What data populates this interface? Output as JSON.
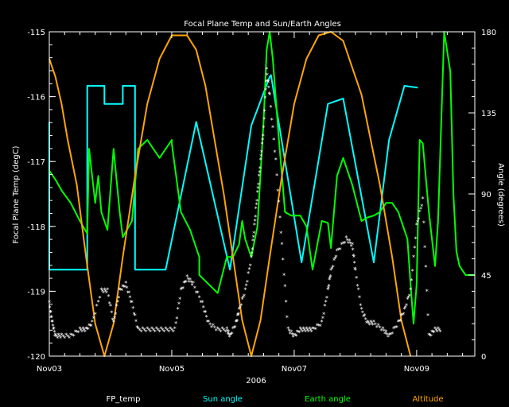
{
  "chart_data": {
    "type": "line",
    "title": "Focal Plane Temp and Sun/Earth Angles",
    "xlabel": "2006",
    "ylabel": "Focal Plane Temp (degC)",
    "y2label": "Angle (degrees)",
    "xlim_days": [
      3,
      9.95
    ],
    "x_ticks": [
      {
        "day": 3,
        "label": "Nov03"
      },
      {
        "day": 5,
        "label": "Nov05"
      },
      {
        "day": 7,
        "label": "Nov07"
      },
      {
        "day": 9,
        "label": "Nov09"
      }
    ],
    "ylim": [
      -120,
      -115
    ],
    "y_ticks": [
      "-115",
      "-116",
      "-117",
      "-118",
      "-119",
      "-120"
    ],
    "y2lim": [
      0,
      180
    ],
    "y2_ticks": [
      "180",
      "135",
      "90",
      "45",
      "0"
    ],
    "legend": [
      {
        "name": "FP_temp",
        "color": "#ffffff"
      },
      {
        "name": "Sun angle",
        "color": "#00ffff"
      },
      {
        "name": "Earth angle",
        "color": "#00ff00"
      },
      {
        "name": "Altitude",
        "color": "#ffa500"
      }
    ],
    "series": [
      {
        "name": "Sun angle",
        "axis": "right",
        "color": "#00ffff",
        "x": [
          3.0,
          3.0,
          3.02,
          3.62,
          3.62,
          3.9,
          3.9,
          4.2,
          4.2,
          4.4,
          4.4,
          4.4,
          4.9,
          4.9,
          5.4,
          5.4,
          5.95,
          5.95,
          6.3,
          6.3,
          6.6,
          6.6,
          6.62,
          6.62,
          7.12,
          7.12,
          7.55,
          7.55,
          7.8,
          7.8,
          8.3,
          8.3,
          8.55,
          8.55,
          8.8,
          8.8,
          9.02,
          9.02
        ],
        "y": [
          130,
          48,
          48,
          48,
          150,
          150,
          140,
          140,
          150,
          150,
          48,
          48,
          48,
          48,
          130,
          130,
          48,
          48,
          128,
          128,
          155,
          155,
          156,
          156,
          52,
          52,
          140,
          140,
          143,
          143,
          52,
          52,
          120,
          120,
          150,
          150,
          149,
          149
        ]
      },
      {
        "name": "Earth angle",
        "axis": "right",
        "color": "#00ff00",
        "x": [
          3.0,
          3.1,
          3.2,
          3.35,
          3.5,
          3.62,
          3.65,
          3.75,
          3.8,
          3.85,
          3.95,
          4.05,
          4.15,
          4.2,
          4.35,
          4.45,
          4.6,
          4.8,
          5.0,
          5.0,
          5.15,
          5.3,
          5.45,
          5.45,
          5.6,
          5.75,
          5.9,
          6.0,
          6.1,
          6.15,
          6.2,
          6.3,
          6.4,
          6.5,
          6.55,
          6.6,
          6.65,
          6.75,
          6.85,
          6.95,
          7.1,
          7.2,
          7.3,
          7.45,
          7.55,
          7.6,
          7.7,
          7.8,
          7.95,
          8.1,
          8.2,
          8.3,
          8.4,
          8.5,
          8.6,
          8.7,
          8.85,
          8.9,
          8.95,
          9.0,
          9.05,
          9.1,
          9.2,
          9.3,
          9.35,
          9.45,
          9.55,
          9.6,
          9.65,
          9.7,
          9.8,
          9.95
        ],
        "y": [
          103,
          98,
          92,
          85,
          75,
          68,
          115,
          85,
          100,
          80,
          70,
          115,
          80,
          66,
          75,
          115,
          120,
          110,
          120,
          118,
          80,
          70,
          55,
          45,
          40,
          35,
          55,
          55,
          62,
          75,
          65,
          55,
          72,
          130,
          170,
          180,
          165,
          120,
          80,
          78,
          78,
          72,
          48,
          75,
          74,
          60,
          100,
          110,
          95,
          75,
          77,
          78,
          80,
          85,
          85,
          80,
          65,
          40,
          18,
          40,
          120,
          118,
          80,
          50,
          75,
          180,
          158,
          90,
          58,
          50,
          45,
          45
        ]
      },
      {
        "name": "Altitude",
        "axis": "right",
        "color": "#ffa500",
        "x": [
          3.0,
          3.1,
          3.2,
          3.3,
          3.45,
          3.6,
          3.75,
          3.9,
          4.05,
          4.2,
          4.4,
          4.6,
          4.8,
          5.0,
          5.25,
          5.4,
          5.55,
          5.7,
          5.85,
          6.0,
          6.15,
          6.3,
          6.45,
          6.6,
          6.8,
          7.0,
          7.2,
          7.4,
          7.6,
          7.8,
          7.95,
          8.1,
          8.25,
          8.4,
          8.6,
          8.75,
          8.9
        ],
        "y": [
          165,
          155,
          140,
          120,
          95,
          55,
          18,
          0,
          18,
          55,
          100,
          140,
          165,
          178,
          178,
          170,
          150,
          120,
          90,
          55,
          20,
          0,
          20,
          55,
          100,
          140,
          165,
          178,
          180,
          175,
          160,
          145,
          120,
          95,
          55,
          20,
          0
        ]
      },
      {
        "name": "FP_temp",
        "axis": "left",
        "color": "#ffffff",
        "x": [
          3.0,
          3.05,
          3.1,
          3.2,
          3.35,
          3.5,
          3.6,
          3.7,
          3.85,
          3.95,
          4.05,
          4.15,
          4.25,
          4.35,
          4.45,
          4.6,
          4.75,
          4.9,
          5.05,
          5.15,
          5.25,
          5.35,
          5.5,
          5.6,
          5.75,
          5.9,
          5.95,
          6.05,
          6.1,
          6.2,
          6.3,
          6.35,
          6.4,
          6.45,
          6.5,
          6.55,
          6.6,
          6.7,
          6.8,
          6.9,
          7.0,
          7.1,
          7.2,
          7.3,
          7.45,
          7.55,
          7.6,
          7.7,
          7.85,
          7.95,
          8.0,
          8.1,
          8.2,
          8.3,
          8.45,
          8.55,
          8.7,
          8.8,
          8.9,
          9.0,
          9.1,
          9.2,
          9.3,
          9.4
        ],
        "y": [
          -119.2,
          -119.5,
          -119.7,
          -119.7,
          -119.7,
          -119.6,
          -119.6,
          -119.5,
          -119.0,
          -119.0,
          -119.5,
          -119.0,
          -118.9,
          -119.2,
          -119.6,
          -119.6,
          -119.6,
          -119.6,
          -119.6,
          -119.0,
          -118.8,
          -118.9,
          -119.2,
          -119.5,
          -119.6,
          -119.6,
          -119.7,
          -119.5,
          -119.3,
          -119.0,
          -118.5,
          -118.0,
          -117.5,
          -117.0,
          -116.5,
          -115.6,
          -116.0,
          -117.0,
          -118.3,
          -119.6,
          -119.7,
          -119.6,
          -119.6,
          -119.6,
          -119.5,
          -119.0,
          -118.7,
          -118.4,
          -118.2,
          -118.3,
          -118.7,
          -119.3,
          -119.5,
          -119.5,
          -119.6,
          -119.7,
          -119.5,
          -119.3,
          -119.0,
          -118.0,
          -117.6,
          -119.7,
          -119.6,
          -119.6
        ]
      }
    ]
  }
}
